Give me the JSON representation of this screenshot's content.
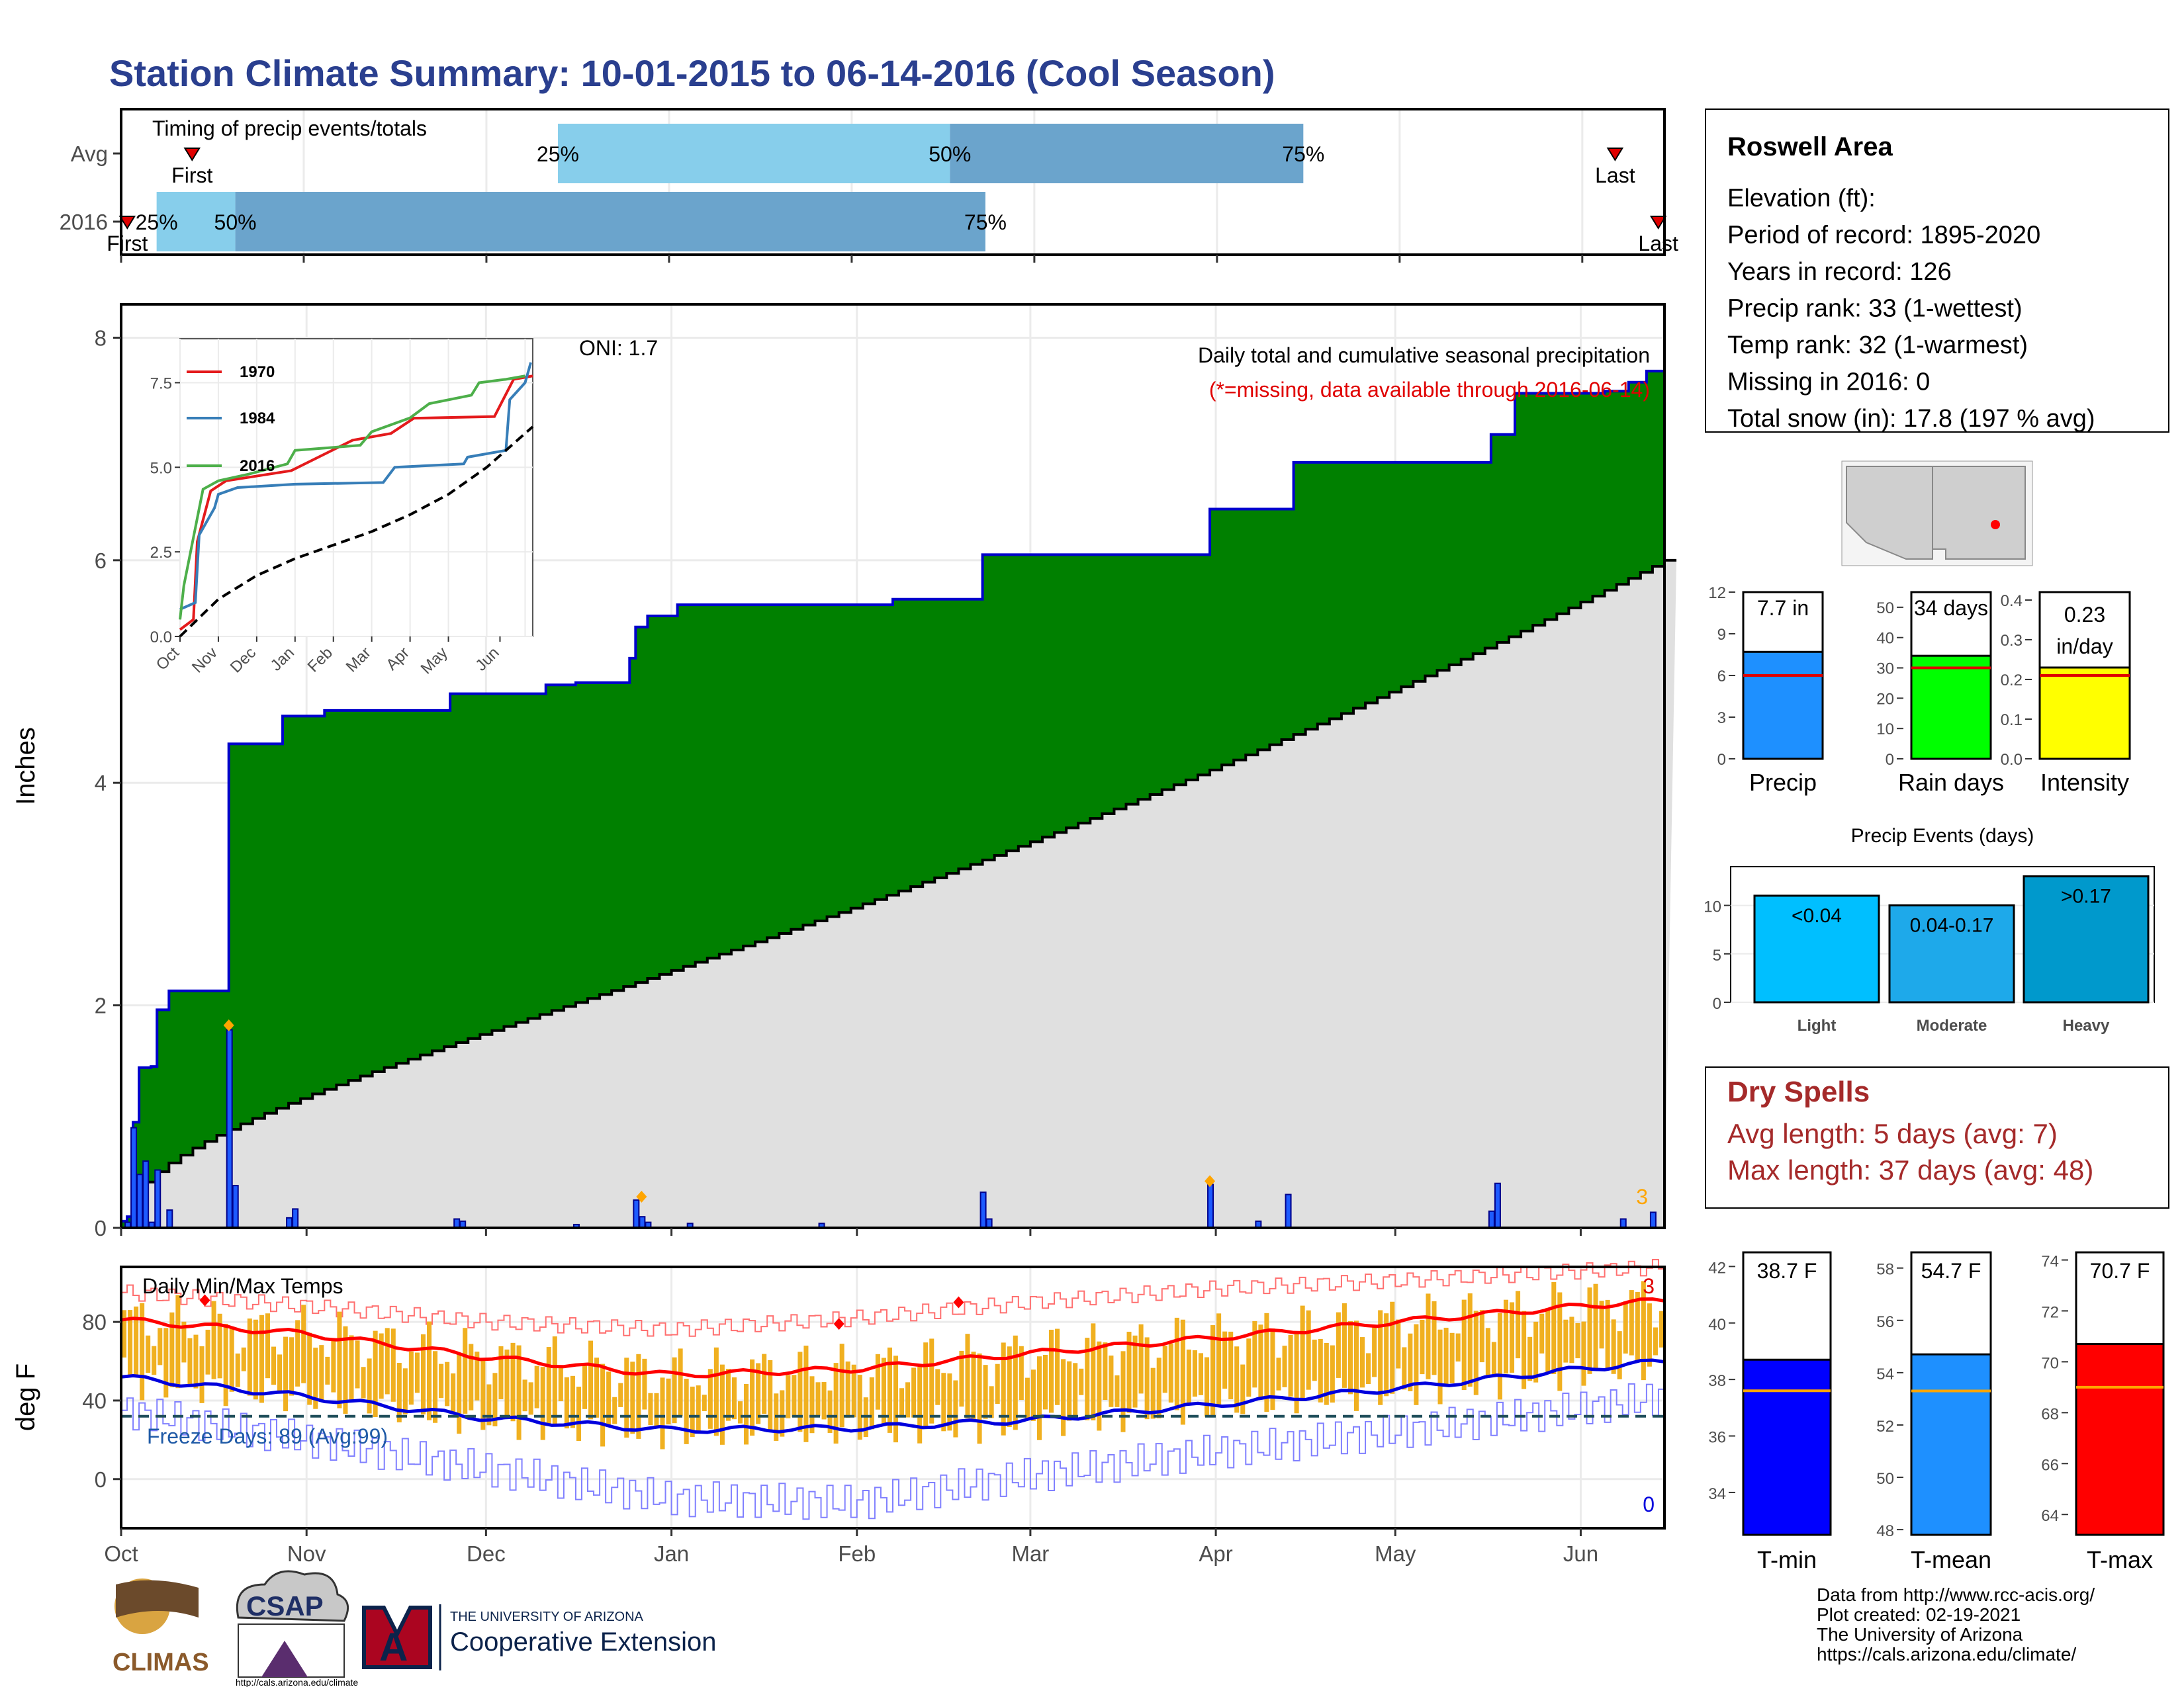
{
  "page": {
    "title": "Station Climate Summary: 10-01-2015 to 06-14-2016 (Cool Season)",
    "footer_lines": [
      "Data from http://www.rcc-acis.org/",
      "Plot created: 02-19-2021",
      "The University of Arizona",
      "https://cals.arizona.edu/climate/"
    ],
    "logos": {
      "climas": "CLIMAS",
      "csap": "CSAP",
      "csap_url": "http://cals.arizona.edu/climate",
      "ua_line1": "THE UNIVERSITY OF ARIZONA",
      "ua_line2": "Cooperative Extension"
    },
    "colors": {
      "title": "#2a3f8f",
      "cumulative_fill": "#008000",
      "cumulative_line": "#0000cc",
      "avg_fill": "#e0e0e0",
      "daily_bar": "#1e5bff",
      "temp_bar": "#f0b020",
      "tmax_avg": "#ff0000",
      "tmin_avg": "#0000dd",
      "dry_spells": "#a52a2a"
    }
  },
  "station_box": {
    "name": "Roswell Area",
    "lines": [
      "Elevation (ft):",
      "Period of record: 1895-2020",
      "Years in record: 126",
      "Precip rank: 33 (1-wettest)",
      "Temp rank: 32 (1-warmest)",
      "Missing in 2016: 0",
      "Total snow (in): 17.8 (197 % avg)"
    ]
  },
  "dry_spells": {
    "title": "Dry Spells",
    "avg_line": "Avg length: 5 days (avg: 7)",
    "max_line": "Max length: 37 days (avg: 48)"
  },
  "chart_data": [
    {
      "id": "timing",
      "type": "bar",
      "title": "Timing of precip events/totals",
      "rows": [
        {
          "label": "Avg",
          "p25_pos": 0.283,
          "p50_pos": 0.537,
          "p75_pos": 0.766,
          "first_pos": 0.046,
          "last_pos": 0.968,
          "p25": "25%",
          "p50": "50%",
          "p75": "75%",
          "first": "First",
          "last": "Last"
        },
        {
          "label": "2016",
          "p25_pos": 0.023,
          "p50_pos": 0.074,
          "p75_pos": 0.56,
          "first_pos": 0.004,
          "last_pos": 0.996,
          "p25": "25%",
          "p50": "50%",
          "p75": "75%",
          "first": "First",
          "last": "Last"
        }
      ],
      "colors": {
        "light": "#87ceeb",
        "dark": "#6ba4cc"
      }
    },
    {
      "id": "precip",
      "type": "area",
      "title": "Daily total and cumulative seasonal precipitation",
      "subtitle": "(*=missing, data available through 2016-06-14)",
      "ylabel": "Inches",
      "ylim": [
        0,
        8.3
      ],
      "yticks": [
        0,
        2,
        4,
        6,
        8
      ],
      "oni": "ONI: 1.7",
      "corner_count": "3",
      "x_months": [
        "Oct",
        "Nov",
        "Dec",
        "Jan",
        "Feb",
        "Mar",
        "Apr",
        "May",
        "Jun"
      ],
      "month_days": [
        0,
        31,
        61,
        92,
        123,
        152,
        183,
        213,
        244
      ],
      "days_total": 258,
      "cumulative_steps": [
        [
          0,
          0.06
        ],
        [
          1,
          0.1
        ],
        [
          2,
          0.95
        ],
        [
          3,
          1.44
        ],
        [
          5,
          1.45
        ],
        [
          6,
          1.96
        ],
        [
          8,
          2.13
        ],
        [
          18,
          4.35
        ],
        [
          27,
          4.6
        ],
        [
          34,
          4.65
        ],
        [
          55,
          4.8
        ],
        [
          68,
          4.8
        ],
        [
          71,
          4.88
        ],
        [
          76,
          4.9
        ],
        [
          85,
          5.12
        ],
        [
          86,
          5.4
        ],
        [
          88,
          5.5
        ],
        [
          93,
          5.6
        ],
        [
          106,
          5.6
        ],
        [
          129,
          5.65
        ],
        [
          144,
          6.05
        ],
        [
          182,
          6.46
        ],
        [
          196,
          6.88
        ],
        [
          229,
          7.13
        ],
        [
          233,
          7.5
        ],
        [
          248,
          7.52
        ],
        [
          252,
          7.6
        ],
        [
          255,
          7.7
        ]
      ],
      "average_end": 6.0,
      "daily_bars": [
        [
          1,
          0.05
        ],
        [
          2,
          0.9
        ],
        [
          3,
          0.48
        ],
        [
          4,
          0.6
        ],
        [
          5,
          0.05
        ],
        [
          6,
          0.52
        ],
        [
          8,
          0.16
        ],
        [
          18,
          1.78
        ],
        [
          19,
          0.38
        ],
        [
          28,
          0.09
        ],
        [
          29,
          0.17
        ],
        [
          56,
          0.08
        ],
        [
          57,
          0.06
        ],
        [
          76,
          0.03
        ],
        [
          86,
          0.25
        ],
        [
          87,
          0.1
        ],
        [
          88,
          0.05
        ],
        [
          95,
          0.04
        ],
        [
          117,
          0.04
        ],
        [
          144,
          0.32
        ],
        [
          145,
          0.08
        ],
        [
          182,
          0.39
        ],
        [
          190,
          0.06
        ],
        [
          195,
          0.3
        ],
        [
          229,
          0.15
        ],
        [
          230,
          0.4
        ],
        [
          251,
          0.08
        ],
        [
          256,
          0.14
        ]
      ],
      "markers": [
        [
          18,
          1.82
        ],
        [
          87,
          0.28
        ],
        [
          182,
          0.42
        ]
      ],
      "inset": {
        "xticks": [
          "Oct",
          "Nov",
          "Dec",
          "Jan",
          "Feb",
          "Mar",
          "Apr",
          "May",
          "Jun"
        ],
        "yticks": [
          "0.0",
          "2.5",
          "5.0",
          "7.5"
        ],
        "series": [
          {
            "name": "1970",
            "color": "#e41a1c",
            "points": [
              [
                0,
                0.2
              ],
              [
                0.35,
                0.5
              ],
              [
                0.45,
                2.8
              ],
              [
                0.8,
                4.3
              ],
              [
                1.2,
                4.6
              ],
              [
                2.9,
                4.9
              ],
              [
                4.5,
                5.8
              ],
              [
                5.5,
                6.0
              ],
              [
                6.1,
                6.45
              ],
              [
                8.2,
                6.5
              ],
              [
                8.7,
                7.6
              ],
              [
                9.2,
                7.7
              ]
            ]
          },
          {
            "name": "1984",
            "color": "#377eb8",
            "points": [
              [
                0,
                0.8
              ],
              [
                0.4,
                1.0
              ],
              [
                0.5,
                3.0
              ],
              [
                0.9,
                3.8
              ],
              [
                1.0,
                4.2
              ],
              [
                1.5,
                4.4
              ],
              [
                3.0,
                4.5
              ],
              [
                5.3,
                4.55
              ],
              [
                5.6,
                5.0
              ],
              [
                7.4,
                5.1
              ],
              [
                7.5,
                5.3
              ],
              [
                8.5,
                5.5
              ],
              [
                8.6,
                7.0
              ],
              [
                9.0,
                7.5
              ],
              [
                9.15,
                8.1
              ]
            ]
          },
          {
            "name": "2016",
            "color": "#4daf4a",
            "points": [
              [
                0,
                0.5
              ],
              [
                0.1,
                1.5
              ],
              [
                0.6,
                4.35
              ],
              [
                1.0,
                4.6
              ],
              [
                1.8,
                4.8
              ],
              [
                2.8,
                5.1
              ],
              [
                3.0,
                5.5
              ],
              [
                4.7,
                5.65
              ],
              [
                5.0,
                6.05
              ],
              [
                6.0,
                6.46
              ],
              [
                6.5,
                6.88
              ],
              [
                7.6,
                7.13
              ],
              [
                7.8,
                7.5
              ],
              [
                8.5,
                7.6
              ],
              [
                9.0,
                7.7
              ]
            ]
          },
          {
            "name": "avg",
            "color": "#000000",
            "points": [
              [
                0,
                0.0
              ],
              [
                1,
                1.1
              ],
              [
                2,
                1.8
              ],
              [
                3,
                2.3
              ],
              [
                4,
                2.7
              ],
              [
                5,
                3.1
              ],
              [
                6,
                3.6
              ],
              [
                7,
                4.2
              ],
              [
                8,
                5.0
              ],
              [
                9.2,
                6.2
              ]
            ]
          }
        ]
      }
    },
    {
      "id": "temps",
      "type": "line",
      "title": "Daily Min/Max Temps",
      "ylabel": "deg F",
      "ylim": [
        -25,
        108
      ],
      "yticks": [
        0,
        40,
        80
      ],
      "freeze_line": 32,
      "freeze_label": "Freeze Days: 89 (Avg:99)",
      "count_top": "3",
      "count_bottom": "0",
      "x_months": [
        "Oct",
        "Nov",
        "Dec",
        "Jan",
        "Feb",
        "Mar",
        "Apr",
        "May",
        "Jun"
      ],
      "tmax_avg": [
        [
          0,
          81
        ],
        [
          31,
          74
        ],
        [
          61,
          62
        ],
        [
          92,
          53
        ],
        [
          123,
          56
        ],
        [
          152,
          64
        ],
        [
          183,
          72
        ],
        [
          213,
          80
        ],
        [
          244,
          88
        ],
        [
          258,
          91
        ]
      ],
      "tmin_avg": [
        [
          0,
          52
        ],
        [
          31,
          42
        ],
        [
          61,
          31
        ],
        [
          92,
          25
        ],
        [
          123,
          26
        ],
        [
          152,
          30
        ],
        [
          183,
          38
        ],
        [
          213,
          46
        ],
        [
          244,
          56
        ],
        [
          258,
          60
        ]
      ],
      "tmax_rec": [
        [
          0,
          95
        ],
        [
          31,
          88
        ],
        [
          61,
          80
        ],
        [
          92,
          76
        ],
        [
          123,
          82
        ],
        [
          152,
          90
        ],
        [
          183,
          97
        ],
        [
          213,
          101
        ],
        [
          244,
          106
        ],
        [
          258,
          108
        ]
      ],
      "tmin_rec": [
        [
          0,
          35
        ],
        [
          31,
          20
        ],
        [
          61,
          5
        ],
        [
          92,
          -10
        ],
        [
          123,
          -12
        ],
        [
          152,
          2
        ],
        [
          183,
          14
        ],
        [
          213,
          24
        ],
        [
          244,
          36
        ],
        [
          258,
          42
        ]
      ],
      "max_markers": [
        [
          14,
          91
        ],
        [
          120,
          79
        ],
        [
          140,
          90
        ]
      ]
    },
    {
      "id": "precip_summary",
      "type": "bar",
      "categories": [
        "Precip",
        "Rain days",
        "Intensity"
      ],
      "values": [
        7.7,
        34,
        0.23
      ],
      "averages": [
        6.0,
        30,
        0.21
      ],
      "labels": [
        "7.7 in",
        "34 days",
        "0.23 in/day"
      ],
      "ylims": [
        [
          0,
          12
        ],
        [
          0,
          55
        ],
        [
          0,
          0.42
        ]
      ],
      "yticks": [
        [
          "0",
          "3",
          "6",
          "9",
          "12"
        ],
        [
          "0",
          "10",
          "20",
          "30",
          "40",
          "50"
        ],
        [
          "0.0",
          "0.1",
          "0.2",
          "0.3",
          "0.4"
        ]
      ],
      "colors": [
        "#1e90ff",
        "#00ff00",
        "#ffff00"
      ]
    },
    {
      "id": "precip_events",
      "type": "bar",
      "title": "Precip Events (days)",
      "categories": [
        "Light",
        "Moderate",
        "Heavy"
      ],
      "bar_labels": [
        "<0.04",
        "0.04-0.17",
        ">0.17"
      ],
      "values": [
        11,
        10,
        13
      ],
      "ylim": [
        0,
        14
      ],
      "yticks": [
        "0",
        "5",
        "10"
      ],
      "colors": [
        "#00bfff",
        "#1ea9ea",
        "#0099cc"
      ]
    },
    {
      "id": "temp_summary",
      "type": "bar",
      "categories": [
        "T-min",
        "T-mean",
        "T-max"
      ],
      "values": [
        38.7,
        54.7,
        70.7
      ],
      "averages": [
        37.6,
        53.3,
        69.0
      ],
      "labels": [
        "38.7 F",
        "54.7 F",
        "70.7 F"
      ],
      "ylims": [
        [
          32.5,
          42.5
        ],
        [
          47.8,
          58.6
        ],
        [
          63.2,
          74.3
        ]
      ],
      "yticks": [
        [
          "34",
          "36",
          "38",
          "40",
          "42"
        ],
        [
          "48",
          "50",
          "52",
          "54",
          "56",
          "58"
        ],
        [
          "64",
          "66",
          "68",
          "70",
          "72",
          "74"
        ]
      ],
      "colors": [
        "#0000ff",
        "#1e90ff",
        "#ff0000"
      ]
    }
  ]
}
